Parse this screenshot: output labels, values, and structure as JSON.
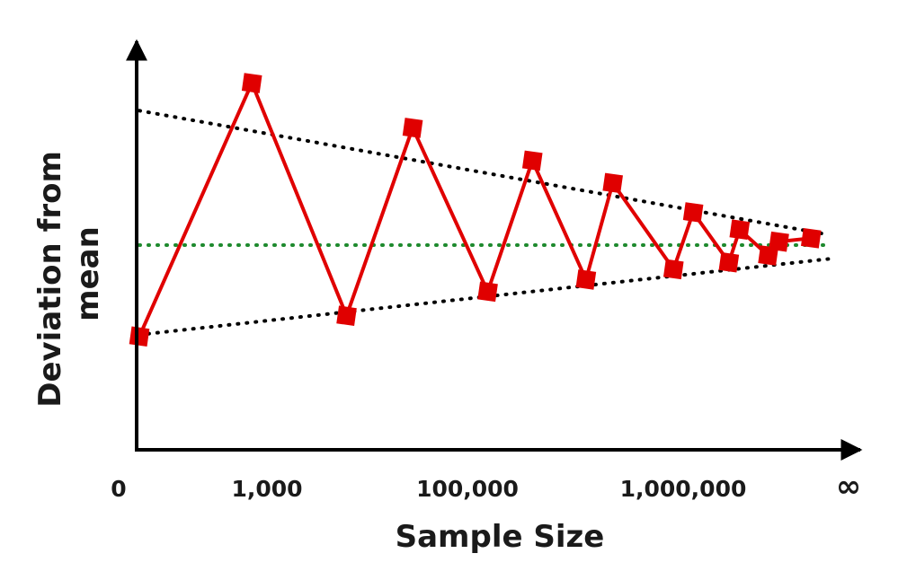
{
  "chart_data": {
    "type": "line",
    "title": "",
    "xlabel": "Sample Size",
    "ylabel": "Deviation from mean",
    "ylabel_lines": [
      "Deviation from",
      "mean"
    ],
    "x_tick_labels": [
      "0",
      "1,000",
      "100,000",
      "1,000,000",
      "∞"
    ],
    "x_tick_positions": [
      0,
      1,
      2,
      3,
      4
    ],
    "xlim": [
      0,
      4
    ],
    "ylim": [
      -1,
      1
    ],
    "grid": false,
    "legend": "none",
    "series": [
      {
        "color": "#e00000",
        "marker": "square",
        "x": [
          0.0,
          0.63,
          1.16,
          1.53,
          1.95,
          2.2,
          2.5,
          2.65,
          2.99,
          3.1,
          3.3,
          3.36,
          3.52,
          3.58,
          3.76
        ],
        "y": [
          -0.53,
          0.94,
          -0.41,
          0.68,
          -0.27,
          0.49,
          -0.2,
          0.36,
          -0.14,
          0.19,
          -0.1,
          0.09,
          -0.06,
          0.02,
          0.04
        ]
      }
    ],
    "reference_lines": [
      {
        "color": "#000000",
        "style": "dotted",
        "x": [
          0.0,
          3.86
        ],
        "y": [
          0.78,
          0.06
        ]
      },
      {
        "color": "#000000",
        "style": "dotted",
        "x": [
          0.0,
          3.86
        ],
        "y": [
          -0.52,
          -0.08
        ]
      },
      {
        "color": "#1e8a2e",
        "style": "dotted",
        "x": [
          0.0,
          3.86
        ],
        "y": [
          0.0,
          0.0
        ]
      }
    ]
  }
}
